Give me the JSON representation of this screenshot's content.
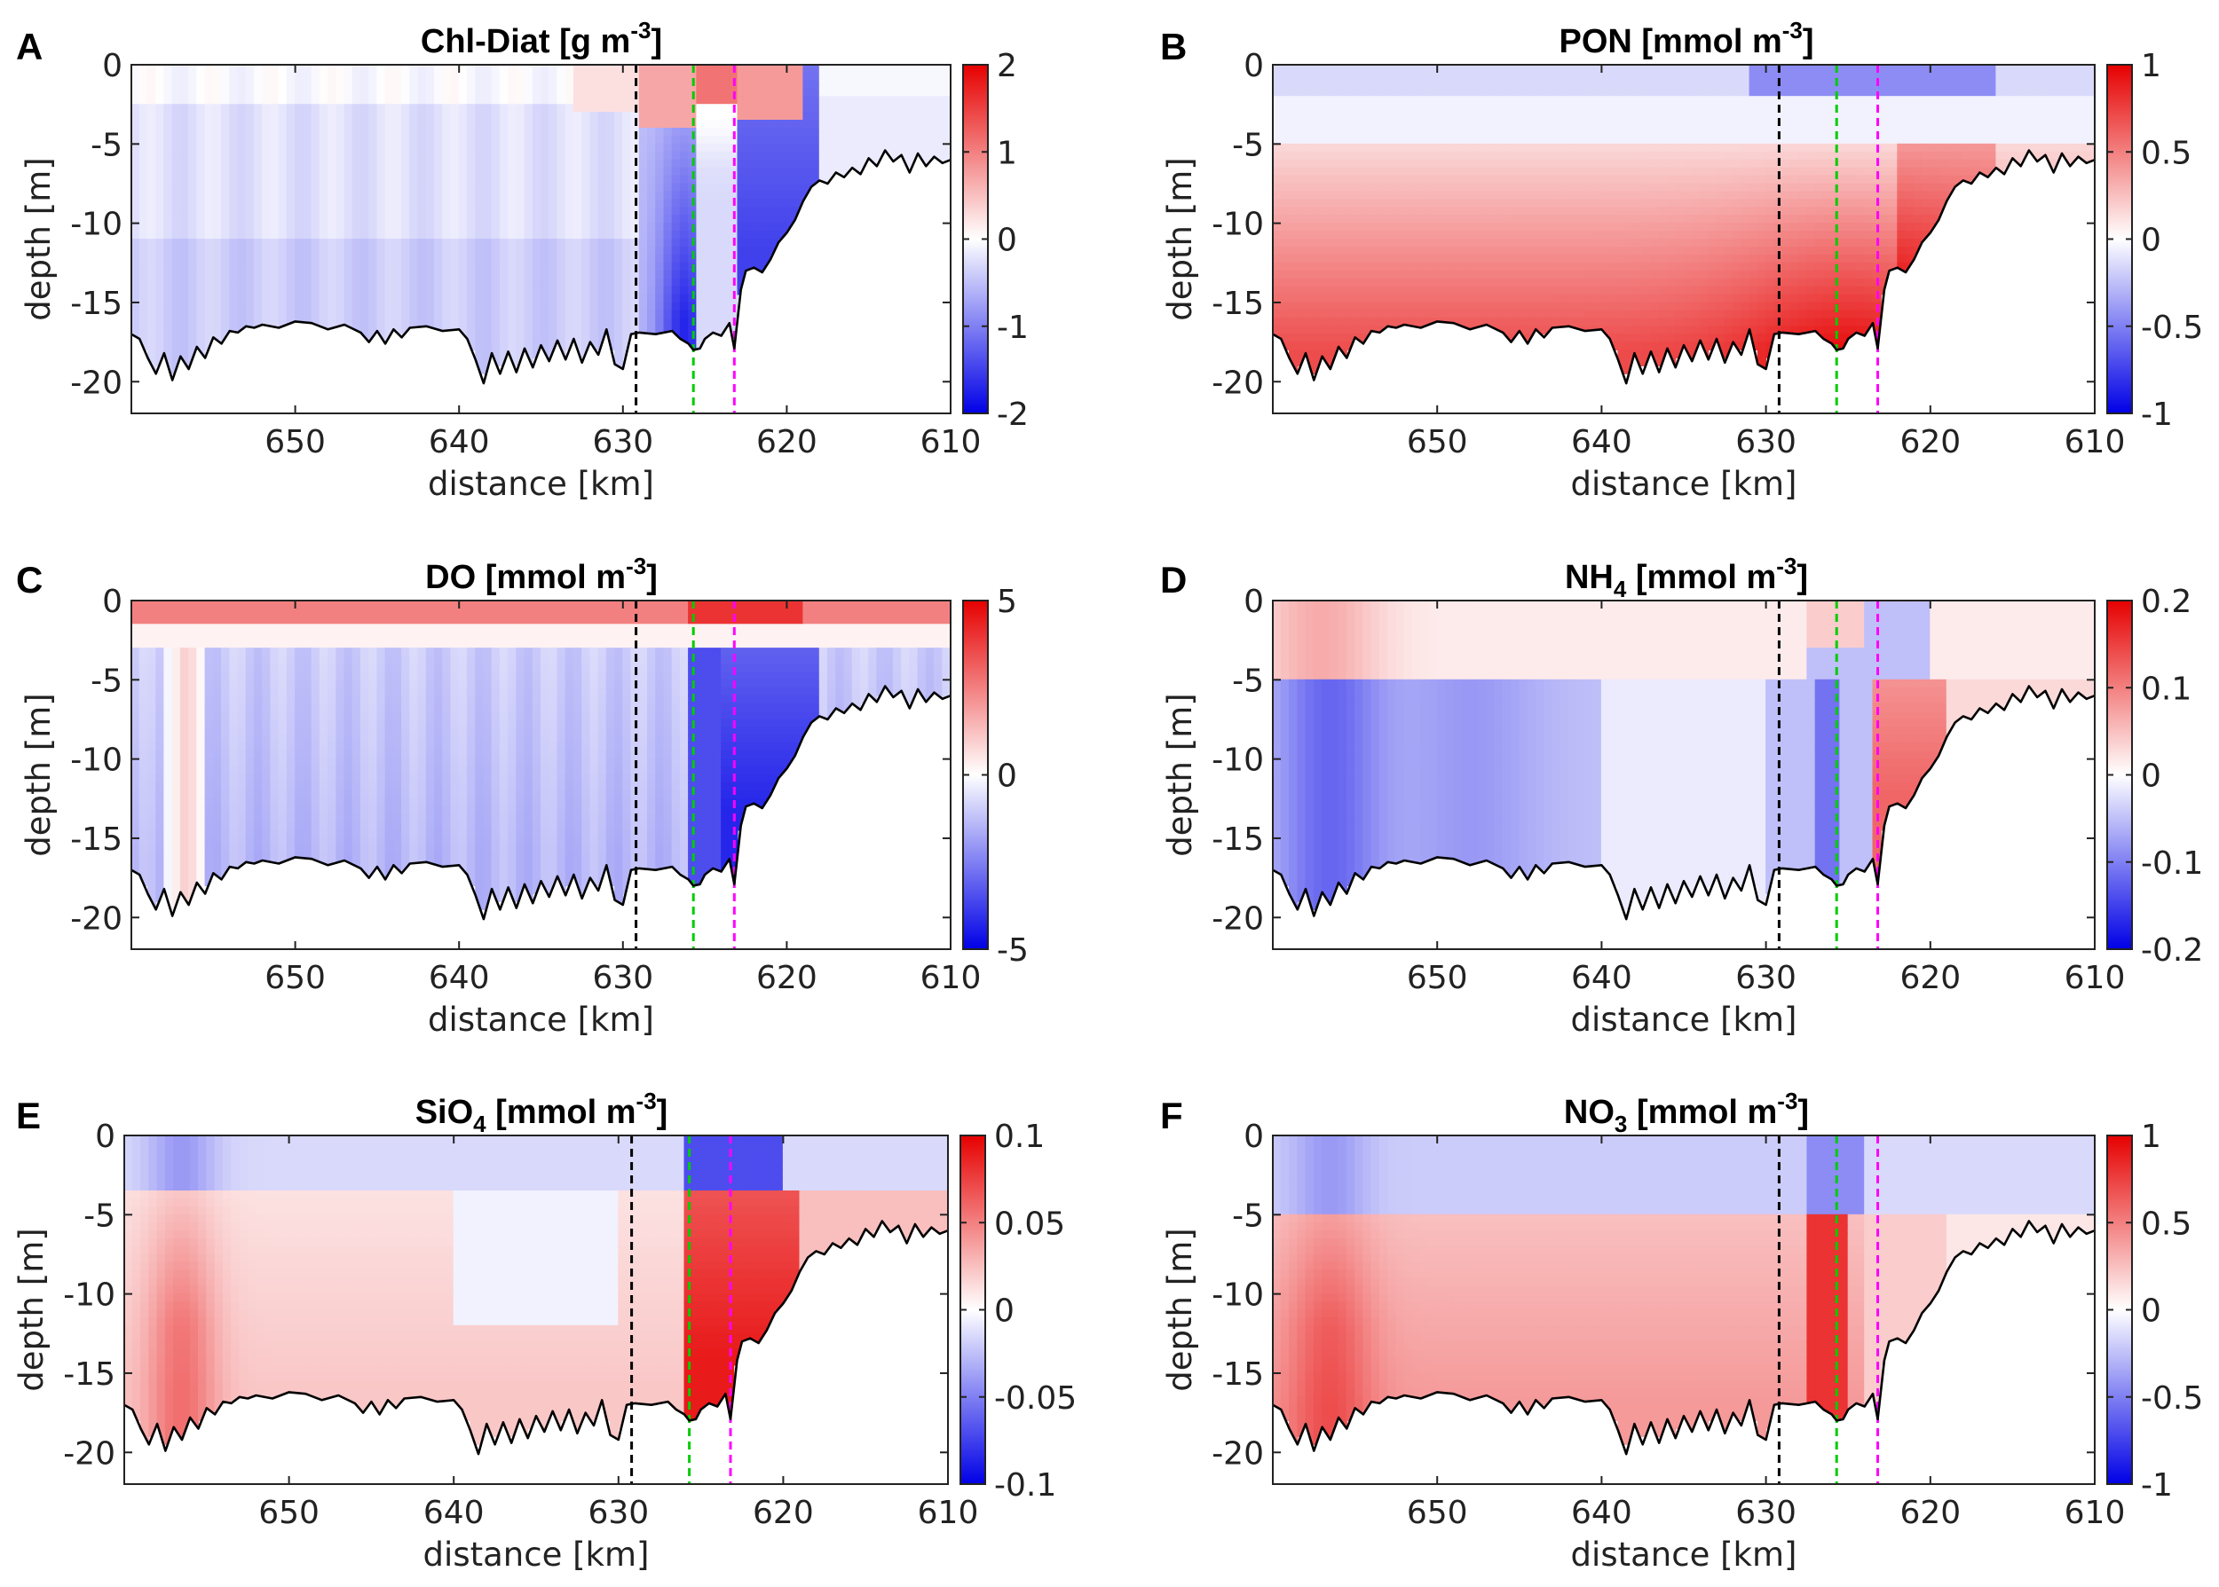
{
  "figure": {
    "domain": "Chart"
  },
  "colormap": {
    "negative": "#0000e6",
    "neutral": "#ffffff",
    "positive": "#e60000"
  },
  "line_colors": {
    "bottom": "#000000",
    "black_marker": "#000000",
    "green_marker": "#00cc00",
    "magenta_marker": "#ff00ff"
  },
  "chart_data": [
    {
      "type": "heatmap",
      "panel": "A",
      "title_main": "Chl-Diat [g m",
      "title_sup": "-3",
      "title_end": "]",
      "xlabel": "distance [km]",
      "ylabel": "depth [m]",
      "xlim": [
        660,
        610
      ],
      "ylim": [
        -22,
        0
      ],
      "xticks": [
        650,
        640,
        630,
        620,
        610
      ],
      "yticks": [
        0,
        -5,
        -10,
        -15,
        -20
      ],
      "clim": [
        -2,
        2
      ],
      "cticks": [
        "2",
        "1",
        "0",
        "-1",
        "-2"
      ],
      "ctick_values": [
        2,
        1,
        0,
        -1,
        -2
      ],
      "markers_km": {
        "black": 629.2,
        "green": 625.7,
        "magenta": 623.2
      },
      "pattern": "chl"
    },
    {
      "type": "heatmap",
      "panel": "B",
      "title_main": "PON [mmol m",
      "title_sup": "-3",
      "title_end": "]",
      "xlabel": "distance [km]",
      "ylabel": "depth [m]",
      "xlim": [
        660,
        610
      ],
      "ylim": [
        -22,
        0
      ],
      "xticks": [
        650,
        640,
        630,
        620,
        610
      ],
      "yticks": [
        0,
        -5,
        -10,
        -15,
        -20
      ],
      "clim": [
        -1,
        1
      ],
      "cticks": [
        "1",
        "0.5",
        "0",
        "-0.5",
        "-1"
      ],
      "ctick_values": [
        1,
        0.5,
        0,
        -0.5,
        -1
      ],
      "markers_km": {
        "black": 629.2,
        "green": 625.7,
        "magenta": 623.2
      },
      "pattern": "pon"
    },
    {
      "type": "heatmap",
      "panel": "C",
      "title_main": "DO [mmol m",
      "title_sup": "-3",
      "title_end": "]",
      "xlabel": "distance [km]",
      "ylabel": "depth [m]",
      "xlim": [
        660,
        610
      ],
      "ylim": [
        -22,
        0
      ],
      "xticks": [
        650,
        640,
        630,
        620,
        610
      ],
      "yticks": [
        0,
        -5,
        -10,
        -15,
        -20
      ],
      "clim": [
        -5,
        5
      ],
      "cticks": [
        "5",
        "0",
        "-5"
      ],
      "ctick_values": [
        5,
        0,
        -5
      ],
      "markers_km": {
        "black": 629.2,
        "green": 625.7,
        "magenta": 623.2
      },
      "pattern": "do"
    },
    {
      "type": "heatmap",
      "panel": "D",
      "title_main": "NH",
      "title_sub": "4",
      "title_mid": " [mmol m",
      "title_sup": "-3",
      "title_end": "]",
      "xlabel": "distance [km]",
      "ylabel": "depth [m]",
      "xlim": [
        660,
        610
      ],
      "ylim": [
        -22,
        0
      ],
      "xticks": [
        650,
        640,
        630,
        620,
        610
      ],
      "yticks": [
        0,
        -5,
        -10,
        -15,
        -20
      ],
      "clim": [
        -0.2,
        0.2
      ],
      "cticks": [
        "0.2",
        "0.1",
        "0",
        "-0.1",
        "-0.2"
      ],
      "ctick_values": [
        0.2,
        0.1,
        0,
        -0.1,
        -0.2
      ],
      "markers_km": {
        "black": 629.2,
        "green": 625.7,
        "magenta": 623.2
      },
      "pattern": "nh4"
    },
    {
      "type": "heatmap",
      "panel": "E",
      "title_main": "SiO",
      "title_sub": "4",
      "title_mid": " [mmol m",
      "title_sup": "-3",
      "title_end": "]",
      "xlabel": "distance [km]",
      "ylabel": "depth [m]",
      "xlim": [
        660,
        610
      ],
      "ylim": [
        -22,
        0
      ],
      "xticks": [
        650,
        640,
        630,
        620,
        610
      ],
      "yticks": [
        0,
        -5,
        -10,
        -15,
        -20
      ],
      "clim": [
        -0.1,
        0.1
      ],
      "cticks": [
        "0.1",
        "0.05",
        "0",
        "-0.05",
        "-0.1"
      ],
      "ctick_values": [
        0.1,
        0.05,
        0,
        -0.05,
        -0.1
      ],
      "markers_km": {
        "black": 629.2,
        "green": 625.7,
        "magenta": 623.2
      },
      "pattern": "sio4"
    },
    {
      "type": "heatmap",
      "panel": "F",
      "title_main": "NO",
      "title_sub": "3",
      "title_mid": " [mmol m",
      "title_sup": "-3",
      "title_end": "]",
      "xlabel": "distance [km]",
      "ylabel": "depth [m]",
      "xlim": [
        660,
        610
      ],
      "ylim": [
        -22,
        0
      ],
      "xticks": [
        650,
        640,
        630,
        620,
        610
      ],
      "yticks": [
        0,
        -5,
        -10,
        -15,
        -20
      ],
      "clim": [
        -1,
        1
      ],
      "cticks": [
        "1",
        "0.5",
        "0",
        "-0.5",
        "-1"
      ],
      "ctick_values": [
        1,
        0.5,
        0,
        -0.5,
        -1
      ],
      "markers_km": {
        "black": 629.2,
        "green": 625.7,
        "magenta": 623.2
      },
      "pattern": "no3"
    }
  ],
  "bathymetry": {
    "x_km": [
      660,
      659.5,
      659,
      658.5,
      658,
      657.5,
      657,
      656.5,
      656,
      655.5,
      655,
      654.5,
      654,
      653.5,
      653,
      652.5,
      652,
      651,
      650,
      649,
      648,
      647,
      646,
      645.5,
      645,
      644.5,
      644,
      643.5,
      643,
      642,
      641,
      640,
      639.5,
      639,
      638.5,
      638,
      637.5,
      637,
      636.5,
      636,
      635.5,
      635,
      634.5,
      634,
      633.5,
      633,
      632.5,
      632,
      631.5,
      631,
      630.5,
      630,
      629.5,
      629,
      628,
      627,
      626.5,
      626,
      625.7,
      625.3,
      625,
      624.5,
      624,
      623.5,
      623.2,
      622.8,
      622.5,
      622,
      621.5,
      621,
      620.5,
      620,
      619.5,
      619,
      618.5,
      618,
      617.5,
      617,
      616.5,
      616,
      615.5,
      615,
      614.5,
      614,
      613.5,
      613,
      612.5,
      612,
      611.5,
      611,
      610.5,
      610
    ],
    "depth_m": [
      -17,
      -17.3,
      -18.5,
      -19.5,
      -18.2,
      -19.9,
      -18.4,
      -19.2,
      -17.8,
      -18.5,
      -17.2,
      -17.6,
      -16.8,
      -16.9,
      -16.5,
      -16.6,
      -16.4,
      -16.6,
      -16.2,
      -16.3,
      -16.7,
      -16.4,
      -16.9,
      -17.5,
      -16.8,
      -17.6,
      -16.7,
      -17.2,
      -16.6,
      -16.5,
      -16.8,
      -16.7,
      -17.3,
      -18.6,
      -20.1,
      -18.2,
      -19.5,
      -18.1,
      -19.4,
      -17.9,
      -19.1,
      -17.7,
      -18.7,
      -17.4,
      -18.6,
      -17.3,
      -18.8,
      -17.5,
      -18.3,
      -16.7,
      -18.9,
      -19.2,
      -17.0,
      -16.9,
      -17.0,
      -16.8,
      -17.3,
      -17.6,
      -18.0,
      -17.9,
      -17.3,
      -16.9,
      -17.1,
      -16.3,
      -17.9,
      -14.2,
      -13.0,
      -12.8,
      -13.1,
      -12.3,
      -11.2,
      -10.6,
      -9.8,
      -8.6,
      -7.7,
      -7.3,
      -7.5,
      -6.8,
      -7.1,
      -6.5,
      -6.9,
      -5.9,
      -6.4,
      -5.4,
      -6.1,
      -5.7,
      -6.8,
      -5.6,
      -6.4,
      -5.8,
      -6.2,
      -6.0
    ]
  }
}
